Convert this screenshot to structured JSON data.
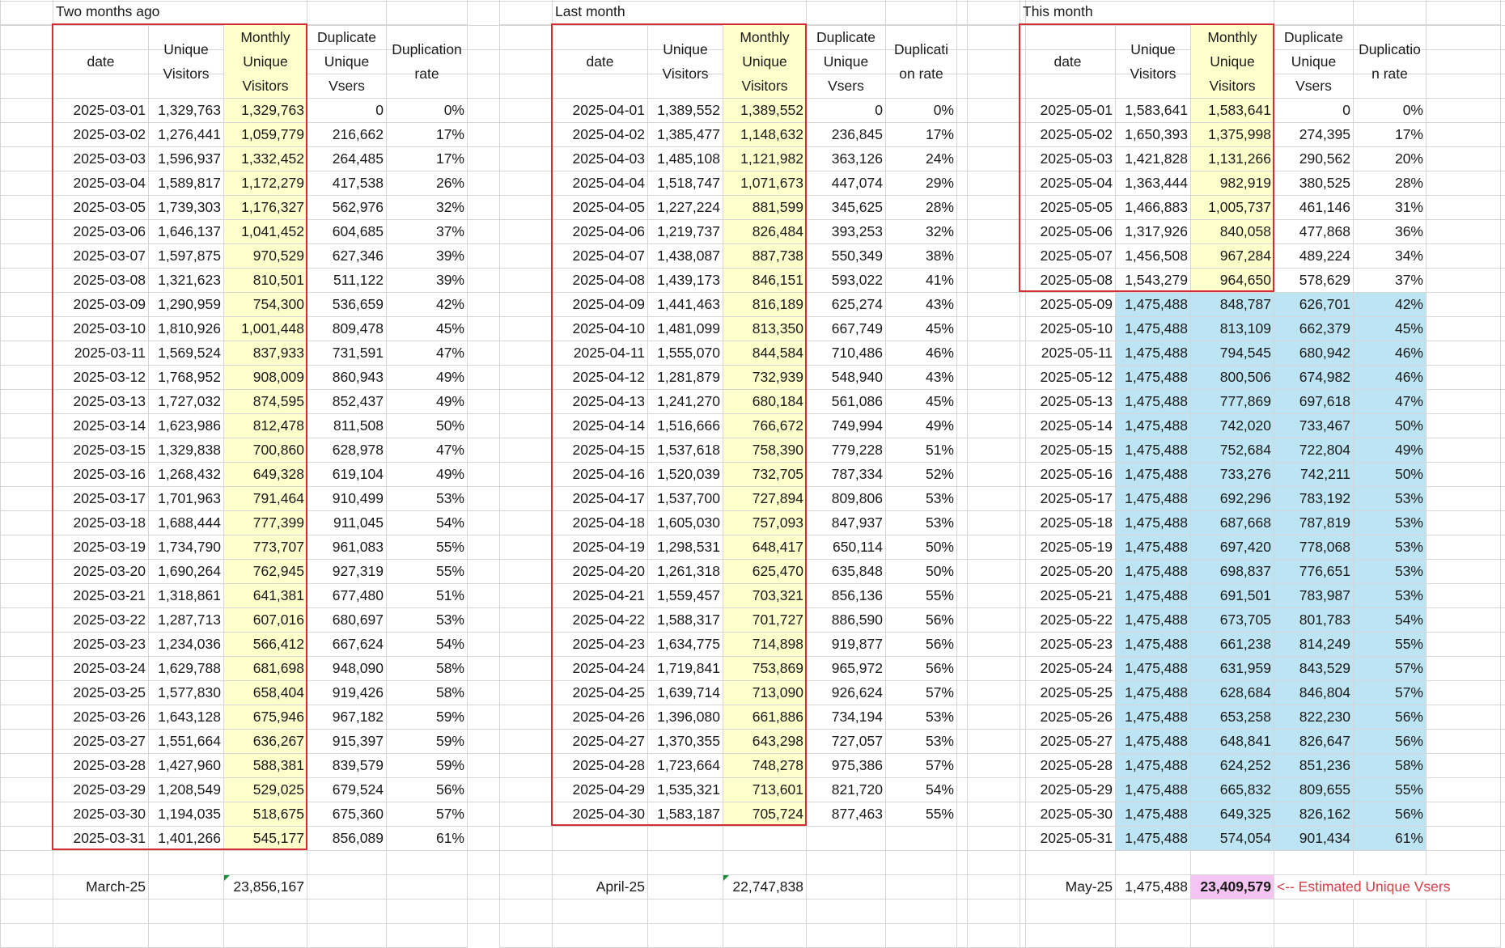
{
  "blocks": [
    {
      "title": "Two months ago",
      "headers": {
        "date": "date",
        "unique": "Unique Visitors",
        "monthly": "Monthly Unique Visitors",
        "dup": "Duplicate Unique Vsers",
        "rate": "Duplication rate"
      },
      "rows": [
        [
          "2025-03-01",
          "1,329,763",
          "1,329,763",
          "0",
          "0%"
        ],
        [
          "2025-03-02",
          "1,276,441",
          "1,059,779",
          "216,662",
          "17%"
        ],
        [
          "2025-03-03",
          "1,596,937",
          "1,332,452",
          "264,485",
          "17%"
        ],
        [
          "2025-03-04",
          "1,589,817",
          "1,172,279",
          "417,538",
          "26%"
        ],
        [
          "2025-03-05",
          "1,739,303",
          "1,176,327",
          "562,976",
          "32%"
        ],
        [
          "2025-03-06",
          "1,646,137",
          "1,041,452",
          "604,685",
          "37%"
        ],
        [
          "2025-03-07",
          "1,597,875",
          "970,529",
          "627,346",
          "39%"
        ],
        [
          "2025-03-08",
          "1,321,623",
          "810,501",
          "511,122",
          "39%"
        ],
        [
          "2025-03-09",
          "1,290,959",
          "754,300",
          "536,659",
          "42%"
        ],
        [
          "2025-03-10",
          "1,810,926",
          "1,001,448",
          "809,478",
          "45%"
        ],
        [
          "2025-03-11",
          "1,569,524",
          "837,933",
          "731,591",
          "47%"
        ],
        [
          "2025-03-12",
          "1,768,952",
          "908,009",
          "860,943",
          "49%"
        ],
        [
          "2025-03-13",
          "1,727,032",
          "874,595",
          "852,437",
          "49%"
        ],
        [
          "2025-03-14",
          "1,623,986",
          "812,478",
          "811,508",
          "50%"
        ],
        [
          "2025-03-15",
          "1,329,838",
          "700,860",
          "628,978",
          "47%"
        ],
        [
          "2025-03-16",
          "1,268,432",
          "649,328",
          "619,104",
          "49%"
        ],
        [
          "2025-03-17",
          "1,701,963",
          "791,464",
          "910,499",
          "53%"
        ],
        [
          "2025-03-18",
          "1,688,444",
          "777,399",
          "911,045",
          "54%"
        ],
        [
          "2025-03-19",
          "1,734,790",
          "773,707",
          "961,083",
          "55%"
        ],
        [
          "2025-03-20",
          "1,690,264",
          "762,945",
          "927,319",
          "55%"
        ],
        [
          "2025-03-21",
          "1,318,861",
          "641,381",
          "677,480",
          "51%"
        ],
        [
          "2025-03-22",
          "1,287,713",
          "607,016",
          "680,697",
          "53%"
        ],
        [
          "2025-03-23",
          "1,234,036",
          "566,412",
          "667,624",
          "54%"
        ],
        [
          "2025-03-24",
          "1,629,788",
          "681,698",
          "948,090",
          "58%"
        ],
        [
          "2025-03-25",
          "1,577,830",
          "658,404",
          "919,426",
          "58%"
        ],
        [
          "2025-03-26",
          "1,643,128",
          "675,946",
          "967,182",
          "59%"
        ],
        [
          "2025-03-27",
          "1,551,664",
          "636,267",
          "915,397",
          "59%"
        ],
        [
          "2025-03-28",
          "1,427,960",
          "588,381",
          "839,579",
          "59%"
        ],
        [
          "2025-03-29",
          "1,208,549",
          "529,025",
          "679,524",
          "56%"
        ],
        [
          "2025-03-30",
          "1,194,035",
          "518,675",
          "675,360",
          "57%"
        ],
        [
          "2025-03-31",
          "1,401,266",
          "545,177",
          "856,089",
          "61%"
        ]
      ],
      "summary": {
        "month": "March-25",
        "unique": "",
        "total": "23,856,167"
      }
    },
    {
      "title": "Last month",
      "headers": {
        "date": "date",
        "unique": "Unique Visitors",
        "monthly": "Monthly Unique Visitors",
        "dup": "Duplicate Unique Vsers",
        "rate": "Duplicati on rate"
      },
      "rows": [
        [
          "2025-04-01",
          "1,389,552",
          "1,389,552",
          "0",
          "0%"
        ],
        [
          "2025-04-02",
          "1,385,477",
          "1,148,632",
          "236,845",
          "17%"
        ],
        [
          "2025-04-03",
          "1,485,108",
          "1,121,982",
          "363,126",
          "24%"
        ],
        [
          "2025-04-04",
          "1,518,747",
          "1,071,673",
          "447,074",
          "29%"
        ],
        [
          "2025-04-05",
          "1,227,224",
          "881,599",
          "345,625",
          "28%"
        ],
        [
          "2025-04-06",
          "1,219,737",
          "826,484",
          "393,253",
          "32%"
        ],
        [
          "2025-04-07",
          "1,438,087",
          "887,738",
          "550,349",
          "38%"
        ],
        [
          "2025-04-08",
          "1,439,173",
          "846,151",
          "593,022",
          "41%"
        ],
        [
          "2025-04-09",
          "1,441,463",
          "816,189",
          "625,274",
          "43%"
        ],
        [
          "2025-04-10",
          "1,481,099",
          "813,350",
          "667,749",
          "45%"
        ],
        [
          "2025-04-11",
          "1,555,070",
          "844,584",
          "710,486",
          "46%"
        ],
        [
          "2025-04-12",
          "1,281,879",
          "732,939",
          "548,940",
          "43%"
        ],
        [
          "2025-04-13",
          "1,241,270",
          "680,184",
          "561,086",
          "45%"
        ],
        [
          "2025-04-14",
          "1,516,666",
          "766,672",
          "749,994",
          "49%"
        ],
        [
          "2025-04-15",
          "1,537,618",
          "758,390",
          "779,228",
          "51%"
        ],
        [
          "2025-04-16",
          "1,520,039",
          "732,705",
          "787,334",
          "52%"
        ],
        [
          "2025-04-17",
          "1,537,700",
          "727,894",
          "809,806",
          "53%"
        ],
        [
          "2025-04-18",
          "1,605,030",
          "757,093",
          "847,937",
          "53%"
        ],
        [
          "2025-04-19",
          "1,298,531",
          "648,417",
          "650,114",
          "50%"
        ],
        [
          "2025-04-20",
          "1,261,318",
          "625,470",
          "635,848",
          "50%"
        ],
        [
          "2025-04-21",
          "1,559,457",
          "703,321",
          "856,136",
          "55%"
        ],
        [
          "2025-04-22",
          "1,588,317",
          "701,727",
          "886,590",
          "56%"
        ],
        [
          "2025-04-23",
          "1,634,775",
          "714,898",
          "919,877",
          "56%"
        ],
        [
          "2025-04-24",
          "1,719,841",
          "753,869",
          "965,972",
          "56%"
        ],
        [
          "2025-04-25",
          "1,639,714",
          "713,090",
          "926,624",
          "57%"
        ],
        [
          "2025-04-26",
          "1,396,080",
          "661,886",
          "734,194",
          "53%"
        ],
        [
          "2025-04-27",
          "1,370,355",
          "643,298",
          "727,057",
          "53%"
        ],
        [
          "2025-04-28",
          "1,723,664",
          "748,278",
          "975,386",
          "57%"
        ],
        [
          "2025-04-29",
          "1,535,321",
          "713,601",
          "821,720",
          "54%"
        ],
        [
          "2025-04-30",
          "1,583,187",
          "705,724",
          "877,463",
          "55%"
        ]
      ],
      "summary": {
        "month": "April-25",
        "unique": "",
        "total": "22,747,838"
      }
    },
    {
      "title": "This month",
      "headers": {
        "date": "date",
        "unique": "Unique Visitors",
        "monthly": "Monthly Unique Visitors",
        "dup": "Duplicate Unique Vsers",
        "rate": "Duplicatio n rate"
      },
      "rows": [
        [
          "2025-05-01",
          "1,583,641",
          "1,583,641",
          "0",
          "0%"
        ],
        [
          "2025-05-02",
          "1,650,393",
          "1,375,998",
          "274,395",
          "17%"
        ],
        [
          "2025-05-03",
          "1,421,828",
          "1,131,266",
          "290,562",
          "20%"
        ],
        [
          "2025-05-04",
          "1,363,444",
          "982,919",
          "380,525",
          "28%"
        ],
        [
          "2025-05-05",
          "1,466,883",
          "1,005,737",
          "461,146",
          "31%"
        ],
        [
          "2025-05-06",
          "1,317,926",
          "840,058",
          "477,868",
          "36%"
        ],
        [
          "2025-05-07",
          "1,456,508",
          "967,284",
          "489,224",
          "34%"
        ],
        [
          "2025-05-08",
          "1,543,279",
          "964,650",
          "578,629",
          "37%"
        ],
        [
          "2025-05-09",
          "1,475,488",
          "848,787",
          "626,701",
          "42%"
        ],
        [
          "2025-05-10",
          "1,475,488",
          "813,109",
          "662,379",
          "45%"
        ],
        [
          "2025-05-11",
          "1,475,488",
          "794,545",
          "680,942",
          "46%"
        ],
        [
          "2025-05-12",
          "1,475,488",
          "800,506",
          "674,982",
          "46%"
        ],
        [
          "2025-05-13",
          "1,475,488",
          "777,869",
          "697,618",
          "47%"
        ],
        [
          "2025-05-14",
          "1,475,488",
          "742,020",
          "733,467",
          "50%"
        ],
        [
          "2025-05-15",
          "1,475,488",
          "752,684",
          "722,804",
          "49%"
        ],
        [
          "2025-05-16",
          "1,475,488",
          "733,276",
          "742,211",
          "50%"
        ],
        [
          "2025-05-17",
          "1,475,488",
          "692,296",
          "783,192",
          "53%"
        ],
        [
          "2025-05-18",
          "1,475,488",
          "687,668",
          "787,819",
          "53%"
        ],
        [
          "2025-05-19",
          "1,475,488",
          "697,420",
          "778,068",
          "53%"
        ],
        [
          "2025-05-20",
          "1,475,488",
          "698,837",
          "776,651",
          "53%"
        ],
        [
          "2025-05-21",
          "1,475,488",
          "691,501",
          "783,987",
          "53%"
        ],
        [
          "2025-05-22",
          "1,475,488",
          "673,705",
          "801,783",
          "54%"
        ],
        [
          "2025-05-23",
          "1,475,488",
          "661,238",
          "814,249",
          "55%"
        ],
        [
          "2025-05-24",
          "1,475,488",
          "631,959",
          "843,529",
          "57%"
        ],
        [
          "2025-05-25",
          "1,475,488",
          "628,684",
          "846,804",
          "57%"
        ],
        [
          "2025-05-26",
          "1,475,488",
          "653,258",
          "822,230",
          "56%"
        ],
        [
          "2025-05-27",
          "1,475,488",
          "648,841",
          "826,647",
          "56%"
        ],
        [
          "2025-05-28",
          "1,475,488",
          "624,252",
          "851,236",
          "58%"
        ],
        [
          "2025-05-29",
          "1,475,488",
          "665,832",
          "809,655",
          "55%"
        ],
        [
          "2025-05-30",
          "1,475,488",
          "649,325",
          "826,162",
          "56%"
        ],
        [
          "2025-05-31",
          "1,475,488",
          "574,054",
          "901,434",
          "61%"
        ]
      ],
      "actual_rows": 8,
      "summary": {
        "month": "May-25",
        "unique": "1,475,488",
        "total": "23,409,579",
        "note": "<-- Estimated Unique Vsers"
      }
    }
  ],
  "colors": {
    "monthly_column_fill": "#ffffcc",
    "estimated_rows_fill": "#bde4f2",
    "estimate_total_fill": "#f4c4f2",
    "red_box_border": "#d42b35",
    "note_text": "#d93d45"
  }
}
